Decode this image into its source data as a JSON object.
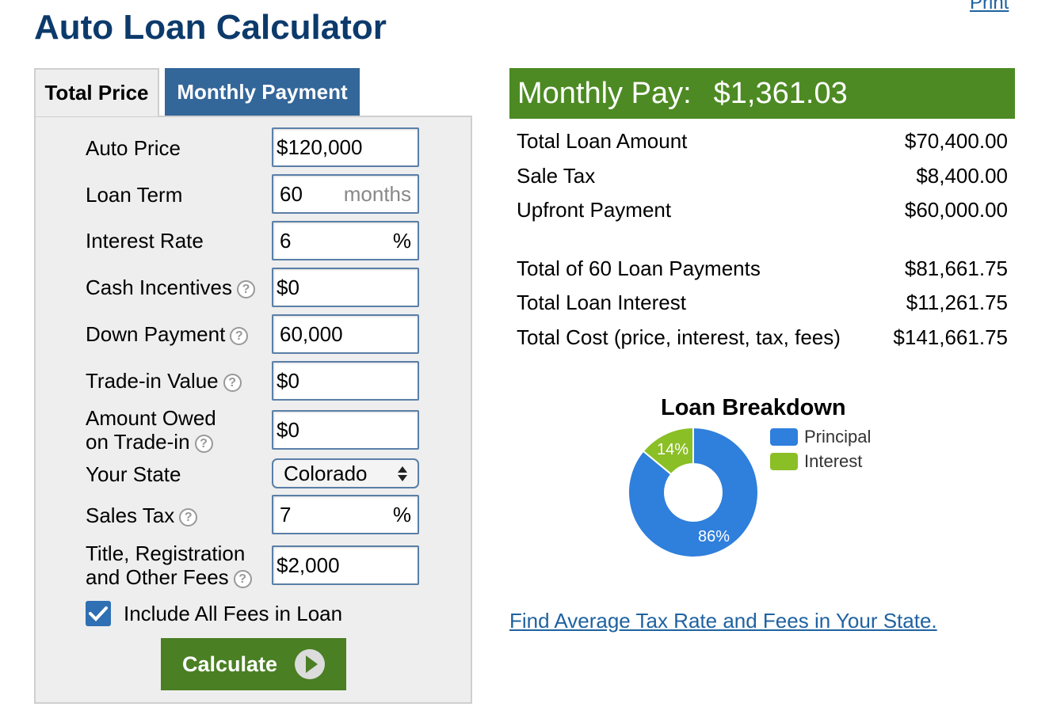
{
  "header": {
    "title": "Auto Loan Calculator",
    "print_label": "Print"
  },
  "tabs": [
    {
      "label": "Total Price",
      "active": true
    },
    {
      "label": "Monthly Payment",
      "active": false
    }
  ],
  "form": {
    "auto_price": {
      "label": "Auto Price",
      "value": "$120,000"
    },
    "loan_term": {
      "label": "Loan Term",
      "value": "60",
      "unit": "months"
    },
    "interest_rate": {
      "label": "Interest Rate",
      "value": "6",
      "unit": "%"
    },
    "cash_incentives": {
      "label": "Cash Incentives",
      "value": "$0"
    },
    "down_payment": {
      "label": "Down Payment",
      "value": "60,000"
    },
    "trade_in_value": {
      "label": "Trade-in Value",
      "value": "$0"
    },
    "amount_owed": {
      "label_line1": "Amount Owed",
      "label_line2": "on Trade-in",
      "value": "$0"
    },
    "state": {
      "label": "Your State",
      "value": "Colorado"
    },
    "sales_tax": {
      "label": "Sales Tax",
      "value": "7",
      "unit": "%"
    },
    "fees": {
      "label_line1": "Title, Registration",
      "label_line2": "and Other Fees",
      "value": "$2,000"
    },
    "include_fees": {
      "label": "Include All Fees in Loan",
      "checked": true
    },
    "calculate_label": "Calculate",
    "help_glyph": "?"
  },
  "results": {
    "monthly_label": "Monthly Pay:",
    "monthly_amount": "$1,361.03",
    "rows": [
      {
        "label": "Total Loan Amount",
        "value": "$70,400.00"
      },
      {
        "label": "Sale Tax",
        "value": "$8,400.00"
      },
      {
        "label": "Upfront Payment",
        "value": "$60,000.00"
      },
      {
        "label": "Total of 60 Loan Payments",
        "value": "$81,661.75"
      },
      {
        "label": "Total Loan Interest",
        "value": "$11,261.75"
      },
      {
        "label": "Total Cost (price, interest, tax, fees)",
        "value": "$141,661.75"
      }
    ],
    "state_link": "Find Average Tax Rate and Fees in Your State."
  },
  "chart": {
    "title": "Loan Breakdown",
    "series": [
      {
        "name": "Principal",
        "percent": 86,
        "label": "86%",
        "color": "#2f7fdc"
      },
      {
        "name": "Interest",
        "percent": 14,
        "label": "14%",
        "color": "#8bbf26"
      }
    ]
  },
  "colors": {
    "title_blue": "#0c3a6b",
    "tab_blue": "#336699",
    "result_green": "#4d8a23",
    "button_green": "#4a7f24",
    "link_blue": "#1f62a1"
  }
}
